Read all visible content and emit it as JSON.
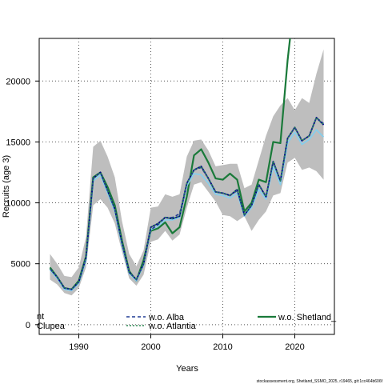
{
  "chart_data": {
    "type": "line",
    "xlabel": "Years",
    "ylabel": "Recruits (age 3)",
    "xlim": [
      1984.5,
      2025.5
    ],
    "ylim": [
      -800,
      23500
    ],
    "x_ticks": [
      1990,
      2000,
      2010,
      2020
    ],
    "y_ticks": [
      0,
      5000,
      10000,
      15000,
      20000
    ],
    "grid": true,
    "legend_position": "bottom",
    "footer": "stockassessment.org, Shetland_SSMO_2025, r19465, git:1cc464b606f",
    "years": [
      1986,
      1987,
      1988,
      1989,
      1990,
      1991,
      1992,
      1993,
      1994,
      1995,
      1996,
      1997,
      1998,
      1999,
      2000,
      2001,
      2002,
      2003,
      2004,
      2005,
      2006,
      2007,
      2008,
      2009,
      2010,
      2011,
      2012,
      2013,
      2014,
      2015,
      2016,
      2017,
      2018,
      2019,
      2020,
      2021,
      2022,
      2023,
      2024
    ],
    "ci_band": {
      "color": "#bebebe",
      "lower": [
        3700,
        3300,
        2600,
        2400,
        3000,
        4700,
        9800,
        10300,
        9600,
        8300,
        6000,
        3800,
        3200,
        4100,
        6800,
        7000,
        7700,
        6900,
        7400,
        9600,
        11500,
        11700,
        10900,
        10100,
        9000,
        8900,
        8500,
        8900,
        7700,
        8600,
        9300,
        10600,
        10800,
        13300,
        13700,
        12700,
        12900,
        12600,
        11900
      ],
      "upper": [
        5800,
        5000,
        4000,
        3900,
        4700,
        7200,
        14600,
        15100,
        13800,
        12100,
        8500,
        5800,
        4800,
        6100,
        9600,
        9700,
        10700,
        10500,
        10700,
        13800,
        15100,
        15200,
        14300,
        13000,
        13100,
        13200,
        13200,
        11200,
        11500,
        13500,
        15500,
        17100,
        18000,
        18600,
        17600,
        18600,
        18200,
        20600,
        22600
      ]
    },
    "series": [
      {
        "name": "",
        "color": "#00008b",
        "dash": "solid",
        "width": 1.8,
        "values": [
          4600,
          3900,
          3000,
          2900,
          3500,
          5500,
          12000,
          12500,
          11000,
          9500,
          6700,
          4300,
          3700,
          5000,
          8000,
          8300,
          8800,
          8700,
          8900,
          11600,
          12700,
          13000,
          12000,
          10900,
          10800,
          10600,
          11100,
          9000,
          9800,
          11500,
          10500,
          13400,
          11800,
          15300,
          16200,
          15100,
          15500,
          17000,
          16400
        ]
      },
      {
        "name": "w.o. Alba",
        "color": "#1f3a93",
        "dash": "4,3",
        "width": 1.6,
        "values": [
          4600,
          3900,
          3000,
          2900,
          3500,
          5500,
          12000,
          12500,
          11000,
          9500,
          6700,
          4300,
          3700,
          5000,
          7800,
          8200,
          8800,
          8800,
          9100,
          11600,
          12700,
          12900,
          12000,
          10900,
          10800,
          10600,
          11000,
          9000,
          9800,
          11500,
          10500,
          13400,
          11800,
          15300,
          16200,
          15100,
          15500,
          17000,
          16500
        ]
      },
      {
        "name": "w.o. Atlantia",
        "color": "#2e8b57",
        "dash": "2,2",
        "width": 1.6,
        "values": [
          4600,
          3900,
          3000,
          2900,
          3500,
          5500,
          12000,
          12500,
          11000,
          9500,
          6700,
          4300,
          3700,
          5000,
          8000,
          8300,
          8800,
          8700,
          8900,
          11600,
          12700,
          13000,
          12000,
          10900,
          10800,
          10600,
          11100,
          9000,
          9800,
          11500,
          10500,
          13400,
          11800,
          15300,
          16200,
          15100,
          15500,
          17000,
          16400
        ]
      },
      {
        "name": "",
        "color": "#87ceeb",
        "dash": "solid",
        "width": 1.8,
        "values": [
          4500,
          3800,
          2900,
          2800,
          3400,
          5300,
          11800,
          12300,
          10800,
          9300,
          6500,
          4200,
          3600,
          4900,
          7800,
          8100,
          8600,
          8600,
          8800,
          11400,
          12400,
          12300,
          11600,
          10700,
          10600,
          10400,
          10800,
          8900,
          9600,
          11100,
          10300,
          13000,
          11500,
          14900,
          15800,
          14800,
          15200,
          16000,
          15400
        ]
      },
      {
        "name": "w.o. Shetland_",
        "color": "#1a7a3a",
        "dash": "solid",
        "width": 2.2,
        "values": [
          4700,
          3900,
          3000,
          2900,
          3600,
          5600,
          12100,
          12500,
          11300,
          9800,
          6900,
          4400,
          3600,
          5300,
          7700,
          7900,
          8400,
          7500,
          8000,
          10500,
          13900,
          14400,
          13300,
          12000,
          11900,
          12400,
          11900,
          9300,
          10000,
          11900,
          11700,
          15000,
          14900,
          21700,
          27000,
          null,
          null,
          null,
          null
        ]
      }
    ],
    "legend": {
      "col1": [
        "nt",
        "Clupea"
      ],
      "col2": [
        "w.o. Alba",
        "w.o. Atlantia"
      ],
      "col3": [
        "w.o. Shetland_"
      ]
    }
  }
}
